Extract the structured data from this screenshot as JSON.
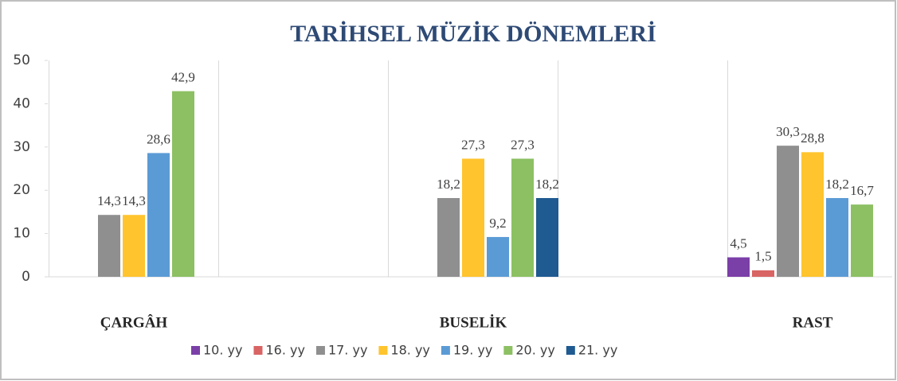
{
  "chart_data": {
    "type": "bar",
    "title": "TARİHSEL MÜZİK DÖNEMLERİ",
    "categories": [
      "ÇARGÂH",
      "BUSELİK",
      "RAST"
    ],
    "series": [
      {
        "name": "10. yy",
        "color": "#7b3fa8",
        "values": [
          null,
          null,
          4.5
        ],
        "value_labels": [
          null,
          null,
          "4,5"
        ]
      },
      {
        "name": "16. yy",
        "color": "#d96464",
        "values": [
          null,
          null,
          1.5
        ],
        "value_labels": [
          null,
          null,
          "1,5"
        ]
      },
      {
        "name": "17. yy",
        "color": "#8f8f8f",
        "values": [
          14.3,
          18.2,
          30.3
        ],
        "value_labels": [
          "14,3",
          "18,2",
          "30,3"
        ]
      },
      {
        "name": "18. yy",
        "color": "#ffc42e",
        "values": [
          14.3,
          27.3,
          28.8
        ],
        "value_labels": [
          "14,3",
          "27,3",
          "28,8"
        ]
      },
      {
        "name": "19. yy",
        "color": "#5b9bd5",
        "values": [
          28.6,
          9.2,
          18.2
        ],
        "value_labels": [
          "28,6",
          "9,2",
          "18,2"
        ]
      },
      {
        "name": "20. yy",
        "color": "#8cc063",
        "values": [
          42.9,
          27.3,
          16.7
        ],
        "value_labels": [
          "42,9",
          "27,3",
          "16,7"
        ]
      },
      {
        "name": "21. yy",
        "color": "#1f5a91",
        "values": [
          null,
          18.2,
          null
        ],
        "value_labels": [
          null,
          "18,2",
          null
        ]
      }
    ],
    "ylim": [
      0,
      50
    ],
    "yticks": [
      0,
      10,
      20,
      30,
      40,
      50
    ],
    "legend": "bottom"
  }
}
